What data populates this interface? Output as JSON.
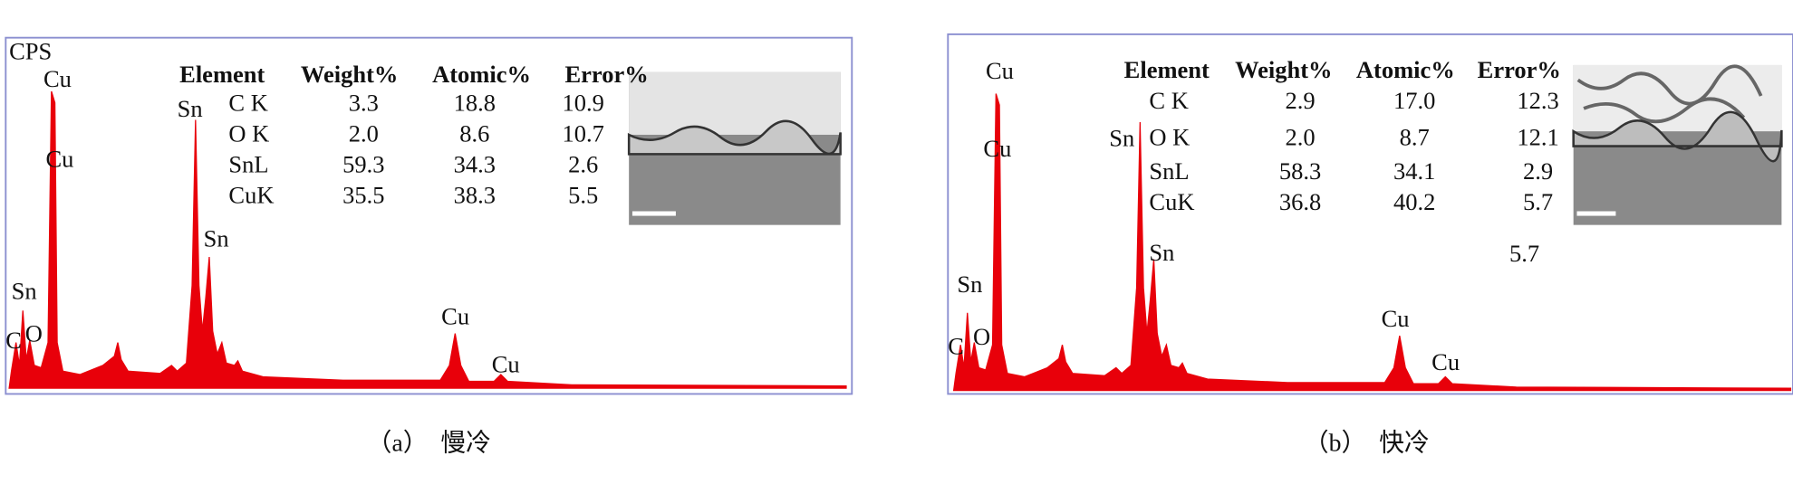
{
  "panels": [
    {
      "caption": "（a）　慢冷",
      "axis_label": "CPS",
      "peaks": [
        "Cu",
        "Cu",
        "Sn",
        "Sn",
        "Sn",
        "C",
        "O",
        "Cu",
        "Cu"
      ],
      "table": {
        "headers": [
          "Element",
          "Weight%",
          "Atomic%",
          "Error%"
        ],
        "rows": [
          [
            "C K",
            "3.3",
            "18.8",
            "10.9"
          ],
          [
            "O K",
            "2.0",
            "8.6",
            "10.7"
          ],
          [
            "SnL",
            "59.3",
            "34.3",
            "2.6"
          ],
          [
            "CuK",
            "35.5",
            "38.3",
            "5.5"
          ]
        ]
      }
    },
    {
      "caption": "（b）　快冷",
      "peaks": [
        "Cu",
        "Cu",
        "Sn",
        "Sn",
        "Sn",
        "C",
        "O",
        "Cu",
        "Cu"
      ],
      "table": {
        "headers": [
          "Element",
          "Weight%",
          "Atomic%",
          "Error%"
        ],
        "rows": [
          [
            "C K",
            "2.9",
            "17.0",
            "12.3"
          ],
          [
            "O K",
            "2.0",
            "8.7",
            "12.1"
          ],
          [
            "SnL",
            "58.3",
            "34.1",
            "2.9"
          ],
          [
            "CuK",
            "36.8",
            "40.2",
            "5.7"
          ]
        ]
      },
      "note": "5.7"
    }
  ]
}
